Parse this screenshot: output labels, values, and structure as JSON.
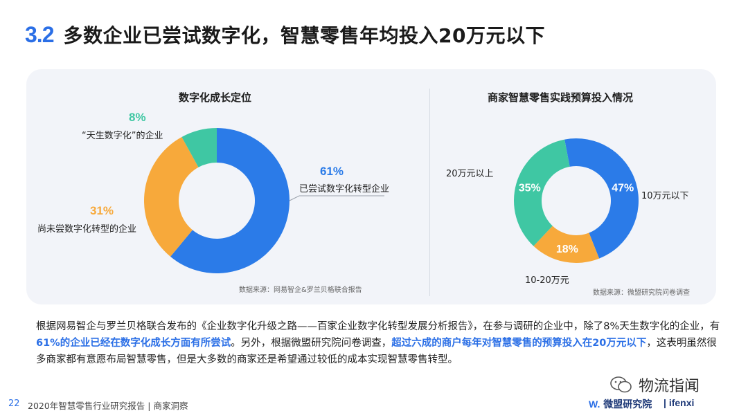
{
  "header": {
    "section_number": "3.2",
    "title": "多数企业已尝试数字化，智慧零售年均投入20万元以下"
  },
  "chart_data": [
    {
      "type": "pie",
      "title": "数字化成长定位",
      "categories": [
        "已尝试数字化转型企业",
        "尚未尝数字化转型的企业",
        "“天生数字化”的企业"
      ],
      "values": [
        61,
        31,
        8
      ],
      "value_labels": [
        "61%",
        "31%",
        "8%"
      ],
      "colors": [
        "#2b7be8",
        "#f7a93b",
        "#3fc7a3"
      ],
      "donut": true,
      "source": "数据来源：网易智企&罗兰贝格联合报告"
    },
    {
      "type": "pie",
      "title": "商家智慧零售实践预算投入情况",
      "categories": [
        "10万元以下",
        "10-20万元",
        "20万元以上"
      ],
      "values": [
        47,
        18,
        35
      ],
      "value_labels": [
        "47%",
        "18%",
        "35%"
      ],
      "colors": [
        "#2b7be8",
        "#f7a93b",
        "#3fc7a3"
      ],
      "donut": true,
      "source": "数据来源：微盟研究院问卷调查"
    }
  ],
  "paragraph": {
    "p1": "根据网易智企与罗兰贝格联合发布的《企业数字化升级之路——百家企业数字化转型发展分析报告》，在参与调研的企业中，除了8%天生数字化的企业，有",
    "h1": "61%的企业已经在数字化成长方面有所尝试",
    "p2": "。另外，根据微盟研究院问卷调查，",
    "h2": "超过六成的商户每年对智慧零售的预算投入在20万元以下",
    "p3": "，这表明虽然很多商家都有意愿布局智慧零售，但是大多数的商家还是希望通过较低的成本实现智慧零售转型。"
  },
  "footer": {
    "page_number": "22",
    "text": "2020年智慧零售行业研究报告 | 商家洞察",
    "logo_weimob": "微盟研究院",
    "logo_ifenxi": "ifenxi",
    "watermark": "物流指闻"
  }
}
